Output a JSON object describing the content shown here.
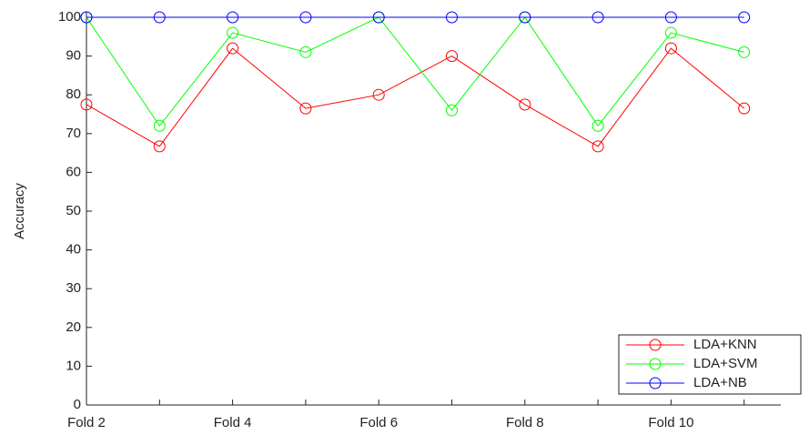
{
  "chart_data": {
    "type": "line",
    "y_label": "Accuracy",
    "categories": [
      "Fold 2",
      null,
      "Fold 4",
      null,
      "Fold 6",
      null,
      "Fold 8",
      null,
      "Fold 10",
      null
    ],
    "series": [
      {
        "name": "LDA+KNN",
        "color": "#ff0000",
        "values": [
          77.5,
          66.7,
          92,
          76.5,
          80,
          90,
          77.5,
          66.7,
          92,
          76.5
        ]
      },
      {
        "name": "LDA+SVM",
        "color": "#00ff00",
        "values": [
          100,
          72,
          96,
          91,
          100,
          76,
          100,
          72,
          96,
          91
        ]
      },
      {
        "name": "LDA+NB",
        "color": "#0000ff",
        "values": [
          100,
          100,
          100,
          100,
          100,
          100,
          100,
          100,
          100,
          100
        ]
      }
    ],
    "ylim": [
      0,
      100
    ],
    "yticks": [
      0,
      10,
      20,
      30,
      40,
      50,
      60,
      70,
      80,
      90,
      100
    ],
    "legend": "lower right"
  }
}
